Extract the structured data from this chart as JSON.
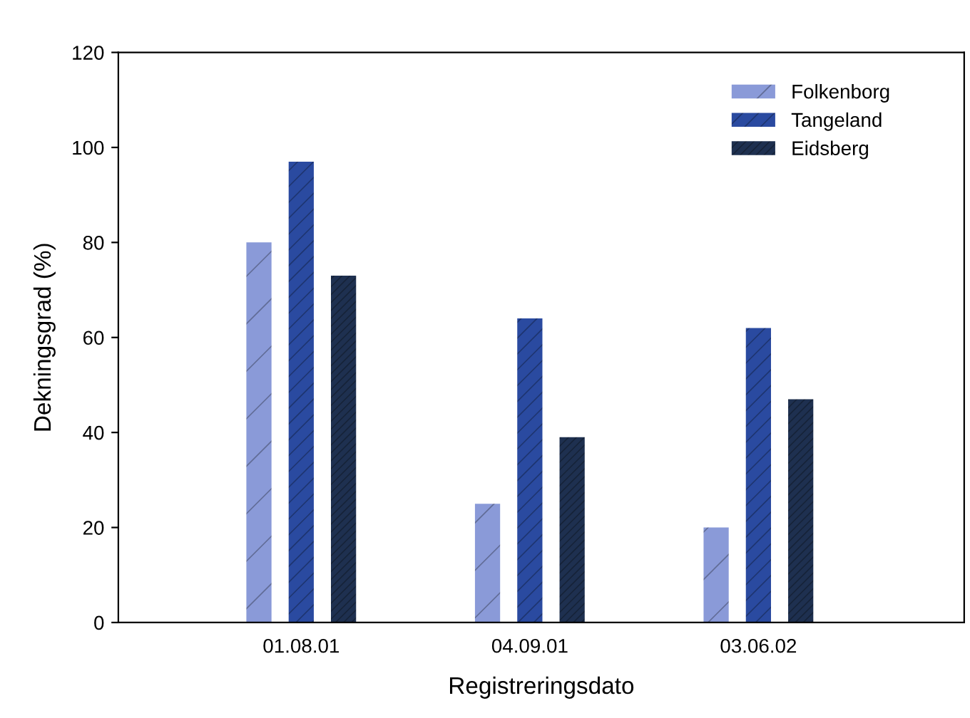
{
  "chart_data": {
    "type": "bar",
    "xlabel": "Registreringsdato",
    "ylabel": "Dekningsgrad (%)",
    "categories": [
      "01.08.01",
      "04.09.01",
      "03.06.02"
    ],
    "series": [
      {
        "name": "Folkenborg",
        "color": "#8a9ad8",
        "values": [
          80,
          25,
          20
        ]
      },
      {
        "name": "Tangeland",
        "color": "#2a4aa0",
        "values": [
          97,
          64,
          62
        ]
      },
      {
        "name": "Eidsberg",
        "color": "#1e3050",
        "values": [
          73,
          39,
          47
        ]
      }
    ],
    "ylim": [
      0,
      120
    ],
    "yticks": [
      0,
      20,
      40,
      60,
      80,
      100,
      120
    ],
    "grid": false,
    "legend": "top right"
  }
}
